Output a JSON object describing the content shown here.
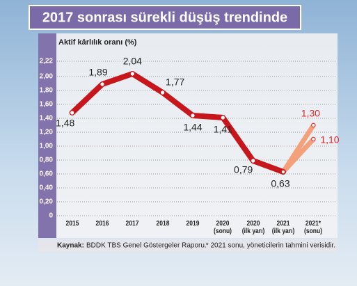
{
  "chart_data": {
    "type": "line",
    "title": "2017 sonrası sürekli düşüş trendinde",
    "y_label": "Aktif kârlılık oranı (%)",
    "categories": [
      "2015",
      "2016",
      "2017",
      "2018",
      "2019",
      "2020\n(sonu)",
      "2020\n(ilk yarı)",
      "2021\n(ilk yarı)",
      "2021*\n(sonu)"
    ],
    "series": [
      {
        "color": "#c8161d",
        "values": [
          1.48,
          1.89,
          2.04,
          1.77,
          1.44,
          1.41,
          0.79,
          0.63,
          null
        ],
        "value_labels": [
          "1,48",
          "1,89",
          "2,04",
          "1,77",
          "1,44",
          "1,41",
          "0,79",
          "0,63",
          null
        ],
        "label_color": "#222222"
      },
      {
        "color": "#f4a07a",
        "values": [
          null,
          null,
          null,
          null,
          null,
          null,
          null,
          0.63,
          1.3
        ],
        "value_labels": [
          null,
          null,
          null,
          null,
          null,
          null,
          null,
          null,
          "1,30"
        ],
        "label_color": "#e0262a"
      },
      {
        "color": "#f4a07a",
        "values": [
          null,
          null,
          null,
          null,
          null,
          null,
          null,
          0.63,
          1.1
        ],
        "value_labels": [
          null,
          null,
          null,
          null,
          null,
          null,
          null,
          null,
          "1,10"
        ],
        "label_color": "#e0262a"
      }
    ],
    "ylim": [
      0,
      2.22
    ],
    "yticks": [
      0,
      {
        "value": 0.2,
        "label": "0,20"
      },
      {
        "value": 0.4,
        "label": "0,40"
      },
      {
        "value": 0.6,
        "label": "0,60"
      },
      {
        "value": 0.8,
        "label": "0,80"
      },
      {
        "value": 1.0,
        "label": "1,00"
      },
      {
        "value": 1.2,
        "label": "1,20"
      },
      {
        "value": 1.4,
        "label": "1,40"
      },
      {
        "value": 1.6,
        "label": "1,60"
      },
      {
        "value": 1.8,
        "label": "1,80"
      },
      {
        "value": 2.0,
        "label": "2,00"
      },
      {
        "value": 2.22,
        "label": "2,22"
      }
    ],
    "grid": true,
    "source_label": "Kaynak:",
    "source": "BDDK TBS Genel Göstergeler Raporu.",
    "note": "* 2021 sonu, yöneticilerin tahmini verisidir."
  }
}
